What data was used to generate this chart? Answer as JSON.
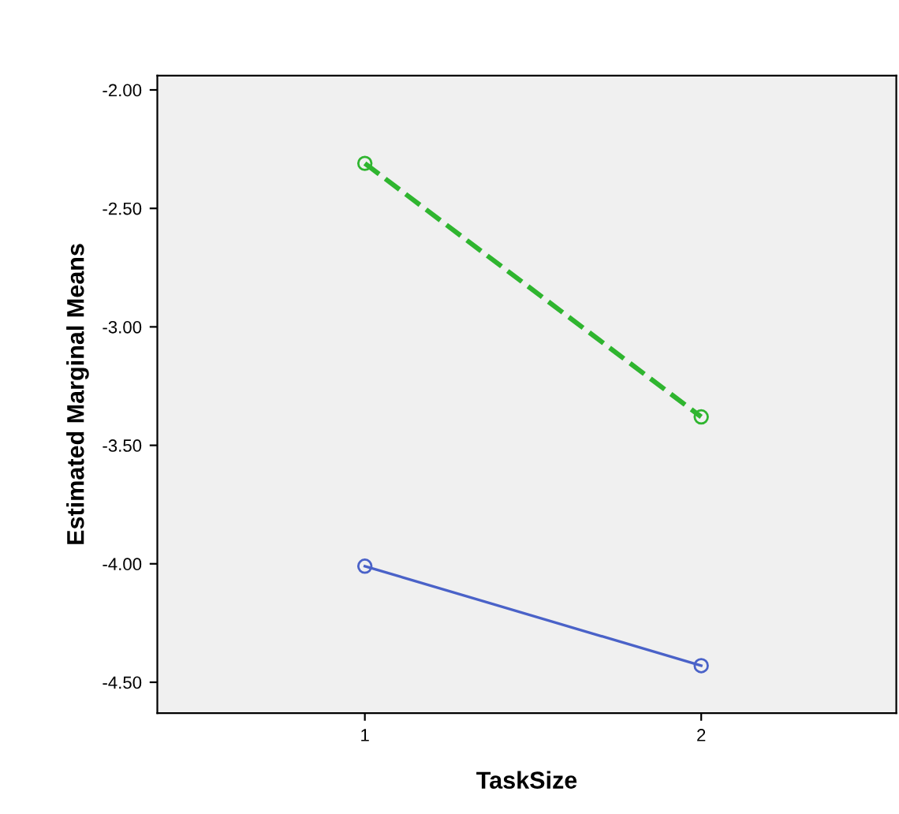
{
  "chart_data": {
    "type": "line",
    "xlabel": "TaskSize",
    "ylabel": "Estimated Marginal Means",
    "categories": [
      "1",
      "2"
    ],
    "series": [
      {
        "color": "#2fb52f",
        "values": [
          -2.31,
          -3.38
        ],
        "line_style": "dashed"
      },
      {
        "color": "#4a62c8",
        "values": [
          -4.01,
          -4.43
        ],
        "line_style": "solid"
      }
    ],
    "ylim": [
      -4.63,
      -1.94
    ],
    "yticks": [
      {
        "value": -2.0,
        "label": "-2.00"
      },
      {
        "value": -2.5,
        "label": "-2.50"
      },
      {
        "value": -3.0,
        "label": "-3.00"
      },
      {
        "value": -3.5,
        "label": "-3.50"
      },
      {
        "value": -4.0,
        "label": "-4.00"
      },
      {
        "value": -4.5,
        "label": "-4.50"
      }
    ],
    "marker": "circle",
    "grid": false
  }
}
